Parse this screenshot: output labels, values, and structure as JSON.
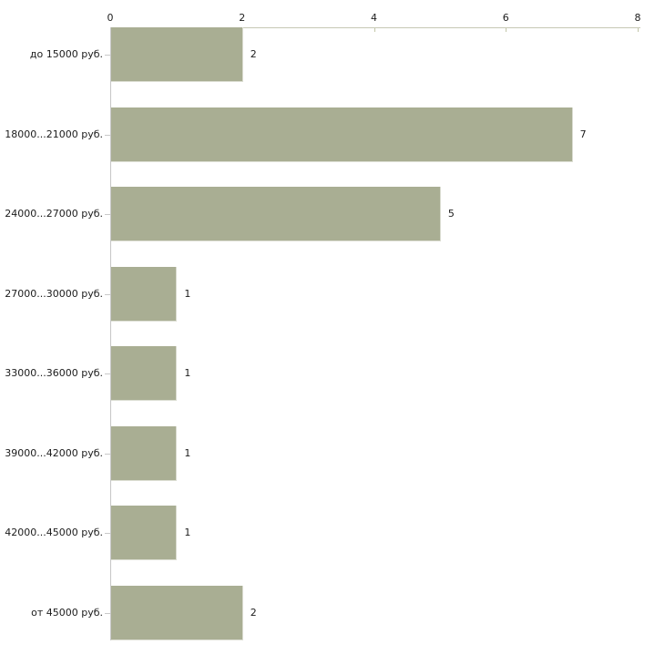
{
  "chart_data": {
    "type": "bar",
    "orientation": "horizontal",
    "title": "",
    "xlabel": "",
    "ylabel": "",
    "categories": [
      "до 15000 руб.",
      "18000...21000 руб.",
      "24000...27000 руб.",
      "27000...30000 руб.",
      "33000...36000 руб.",
      "39000...42000 руб.",
      "42000...45000 руб.",
      "от 45000 руб."
    ],
    "values": [
      2,
      7,
      5,
      1,
      1,
      1,
      1,
      2
    ],
    "value_labels": [
      "2",
      "7",
      "5",
      "1",
      "1",
      "1",
      "1",
      "2"
    ],
    "xlim": [
      0,
      8
    ],
    "xticks": [
      0,
      2,
      4,
      6,
      8
    ],
    "xtick_labels": [
      "0",
      "2",
      "4",
      "6",
      "8"
    ],
    "axis_position": "top",
    "grid": false,
    "legend": null,
    "colors": {
      "background": "#ffffff",
      "bar_fill": "#a9ae93",
      "bar_edge": "#dcded3",
      "top_axis": "#c6c8b4",
      "tick_mark": "#c2c6a8",
      "left_axis": "#c6c6c6",
      "text": "#1c1c1c"
    }
  }
}
